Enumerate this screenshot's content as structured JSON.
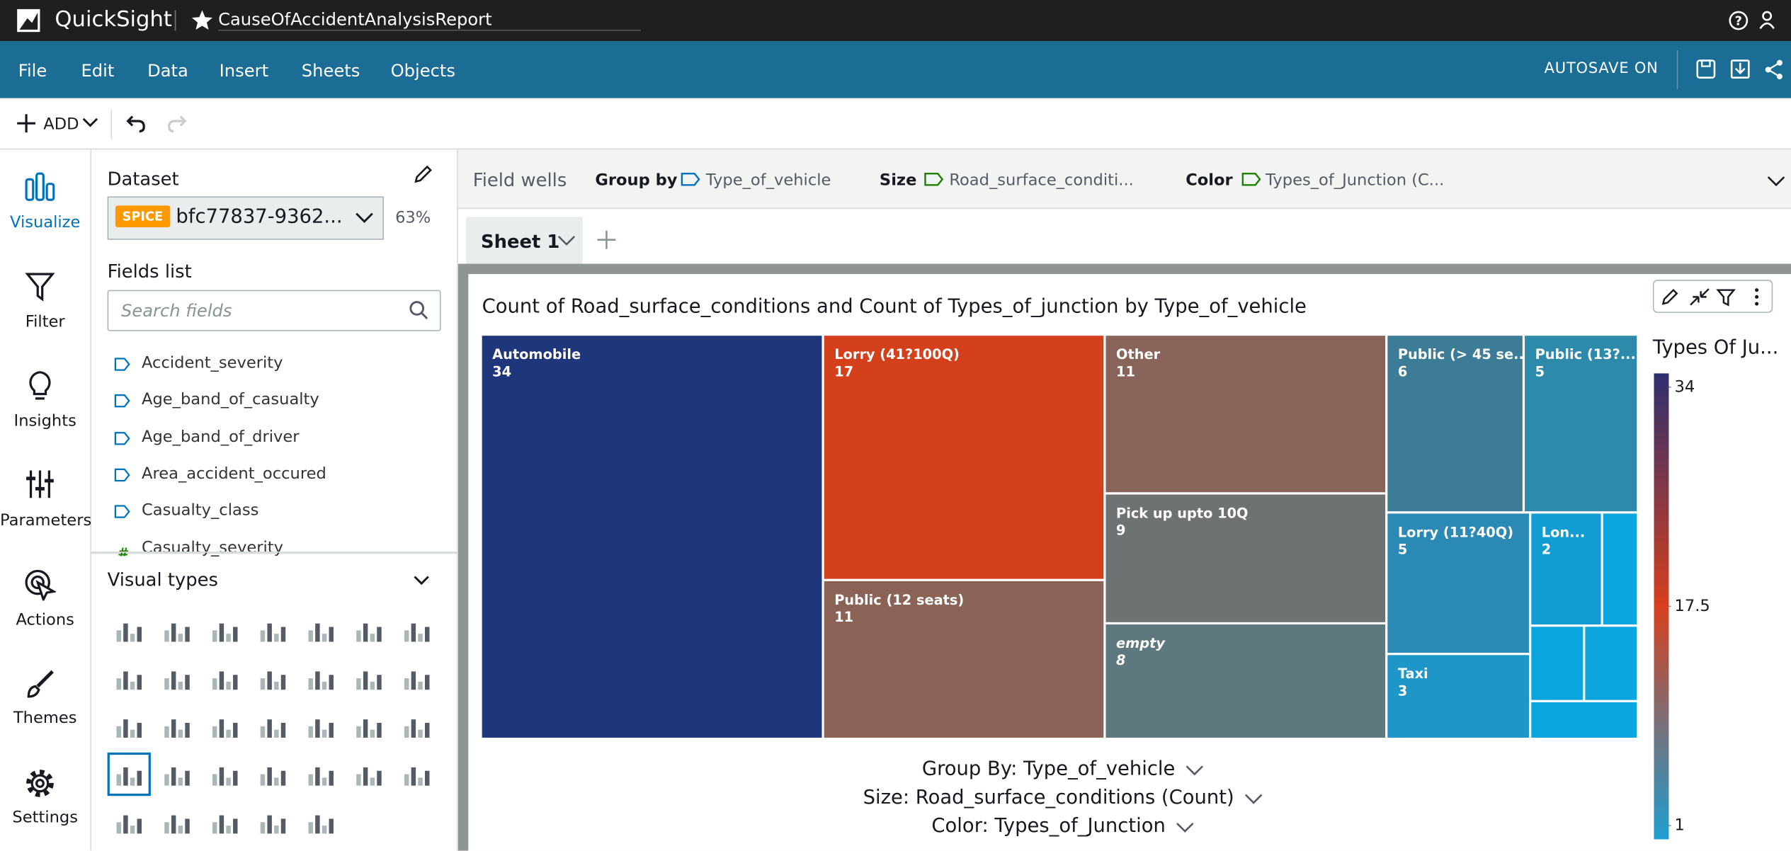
{
  "app": {
    "name": "QuickSight",
    "report": "CauseOfAccidentAnalysisReport"
  },
  "menu": [
    "File",
    "Edit",
    "Data",
    "Insert",
    "Sheets",
    "Objects"
  ],
  "autosave": "AUTOSAVE ON",
  "toolbar": {
    "add": "ADD"
  },
  "sidebar": [
    "Visualize",
    "Filter",
    "Insights",
    "Parameters",
    "Actions",
    "Themes",
    "Settings"
  ],
  "dataset": {
    "heading": "Dataset",
    "badge": "SPICE",
    "name": "bfc77837-9362...",
    "percent": "63%"
  },
  "fields": {
    "heading": "Fields list",
    "search": "Search fields",
    "items": [
      "Accident_severity",
      "Age_band_of_casualty",
      "Age_band_of_driver",
      "Area_accident_occured",
      "Casualty_class",
      "Casualty_severity"
    ]
  },
  "visual_types": {
    "heading": "Visual types"
  },
  "field_wells": {
    "heading": "Field wells",
    "wells": [
      {
        "label": "Group by",
        "field": "Type_of_vehicle"
      },
      {
        "label": "Size",
        "field": "Road_surface_conditi..."
      },
      {
        "label": "Color",
        "field": "Types_of_Junction (C..."
      }
    ]
  },
  "sheet_tab": "Sheet 1",
  "chart_data": {
    "type": "treemap",
    "title": "Count of Road_surface_conditions and Count of Types_of_junction by Type_of_vehicle",
    "categories": [
      "Automobile",
      "Lorry (41?100Q)",
      "Public (12 seats)",
      "Other",
      "Pick up upto 10Q",
      "empty",
      "Public (> 45 se...",
      "Public (13?...",
      "Lorry (11?40Q)",
      "Lon...",
      "Taxi",
      null,
      null,
      null,
      null
    ],
    "values": [
      34,
      17,
      11,
      11,
      9,
      8,
      6,
      5,
      5,
      2,
      3,
      1,
      1,
      1,
      1
    ],
    "colors": [
      "#1f367a",
      "#d4401c",
      "#8a6356",
      "#88645a",
      "#6f7272",
      "#5e7880",
      "#3d7c96",
      "#2d8aaa",
      "#2a8ab5",
      "#139cd1",
      "#1e97c8",
      "#0aa5dc",
      "#0aa5dc",
      "#0aa5dc",
      "#0aa5dc"
    ],
    "legend": {
      "title": "Types Of Ju...",
      "clim": [
        1,
        34
      ],
      "ticks": [
        34,
        17.5,
        1
      ],
      "colors": [
        "#2e2f6e",
        "#d6401e",
        "#1e9ed0"
      ]
    },
    "controls": [
      "Group By: Type_of_vehicle",
      "Size: Road_surface_conditions (Count)",
      "Color: Types_of_Junction"
    ]
  }
}
